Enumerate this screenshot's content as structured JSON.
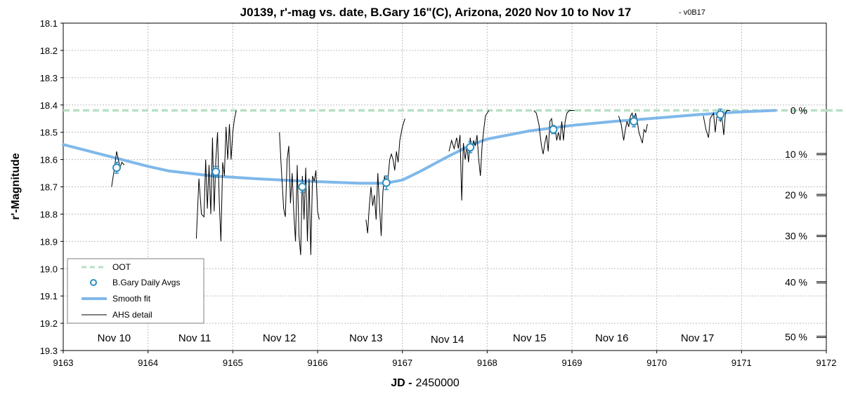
{
  "chart_data": {
    "type": "line",
    "title": "J0139, r'-mag vs. date, B.Gary 16\"(C), Arizona, 2020 Nov 10 to Nov 17",
    "version": "-  v0B17",
    "xlabel_bold": "JD -",
    "xlabel_rest": "2450000",
    "ylabel": "r'-Magnitude",
    "xlim": [
      9163,
      9172
    ],
    "ylim": [
      18.1,
      19.3
    ],
    "y_inverted": true,
    "grid": true,
    "legend_position": "bottom-left",
    "x_ticks": [
      "9163",
      "9164",
      "9165",
      "9166",
      "9167",
      "9168",
      "9169",
      "9170",
      "9171",
      "9172"
    ],
    "y_ticks": [
      "18.1",
      "18.2",
      "18.3",
      "18.4",
      "18.5",
      "18.6",
      "18.7",
      "18.8",
      "18.9",
      "19.0",
      "19.1",
      "19.2",
      "19.3"
    ],
    "day_labels": [
      {
        "x": 9163.6,
        "text": "Nov 10"
      },
      {
        "x": 9164.55,
        "text": "Nov 11"
      },
      {
        "x": 9165.55,
        "text": "Nov 12"
      },
      {
        "x": 9166.57,
        "text": "Nov 13"
      },
      {
        "x": 9167.53,
        "text": "Nov 14"
      },
      {
        "x": 9168.5,
        "text": "Nov 15"
      },
      {
        "x": 9169.47,
        "text": "Nov 16"
      },
      {
        "x": 9170.48,
        "text": "Nov 17"
      }
    ],
    "depth_scale": [
      {
        "label": "0 %",
        "mag": 18.42
      },
      {
        "label": "10 %",
        "mag": 18.58
      },
      {
        "label": "20 %",
        "mag": 18.73
      },
      {
        "label": "30 %",
        "mag": 18.88
      },
      {
        "label": "40 %",
        "mag": 19.05
      },
      {
        "label": "50 %",
        "mag": 19.25
      }
    ],
    "series": [
      {
        "name": "OOT",
        "kind": "dashed-line",
        "color": "#b7dfc4",
        "x": [
          9163,
          9172
        ],
        "y": [
          18.42,
          18.42
        ]
      },
      {
        "name": "B.Gary Daily Avgs",
        "kind": "markers-errorbars",
        "color": "#2f8fc0",
        "x": [
          9163.63,
          9164.8,
          9165.82,
          9166.81,
          9167.8,
          9168.78,
          9169.73,
          9170.75
        ],
        "y": [
          18.63,
          18.645,
          18.7,
          18.685,
          18.555,
          18.49,
          18.46,
          18.435
        ],
        "err": [
          0.02,
          0.02,
          0.02,
          0.025,
          0.02,
          0.015,
          0.02,
          0.02
        ]
      },
      {
        "name": "Smooth fit",
        "kind": "line",
        "color": "#7fb8ea",
        "x": [
          9163.0,
          9163.5,
          9164.0,
          9164.25,
          9164.75,
          9165.25,
          9165.75,
          9166.25,
          9166.5,
          9166.8,
          9167.0,
          9167.2,
          9167.5,
          9167.8,
          9168.0,
          9168.5,
          9169.0,
          9169.5,
          9170.0,
          9170.5,
          9171.0,
          9171.4
        ],
        "y": [
          18.545,
          18.585,
          18.625,
          18.642,
          18.66,
          18.67,
          18.678,
          18.684,
          18.687,
          18.687,
          18.675,
          18.645,
          18.595,
          18.548,
          18.525,
          18.495,
          18.475,
          18.46,
          18.448,
          18.435,
          18.425,
          18.42
        ]
      },
      {
        "name": "AHS detail",
        "kind": "line",
        "color": "#000000",
        "segments": [
          {
            "x": [
              9163.57,
              9163.6,
              9163.63,
              9163.65,
              9163.67,
              9163.69,
              9163.72
            ],
            "y": [
              18.7,
              18.64,
              18.57,
              18.6,
              18.63,
              18.61,
              18.62
            ]
          },
          {
            "x": [
              9164.57,
              9164.6,
              9164.63,
              9164.66,
              9164.68,
              9164.7,
              9164.72,
              9164.74,
              9164.76,
              9164.78,
              9164.8,
              9164.82,
              9164.84,
              9164.86,
              9164.88,
              9164.9,
              9164.92,
              9164.94,
              9164.96,
              9164.98,
              9165.0,
              9165.02,
              9165.04
            ],
            "y": [
              18.89,
              18.67,
              18.8,
              18.81,
              18.6,
              18.78,
              18.62,
              18.8,
              18.52,
              18.79,
              18.6,
              18.5,
              18.75,
              18.9,
              18.61,
              18.66,
              18.48,
              18.6,
              18.47,
              18.6,
              18.5,
              18.45,
              18.42
            ]
          },
          {
            "x": [
              9165.55,
              9165.57,
              9165.6,
              9165.62,
              9165.64,
              9165.66,
              9165.68,
              9165.7,
              9165.72,
              9165.74,
              9165.76,
              9165.78,
              9165.8,
              9165.82,
              9165.84,
              9165.86,
              9165.88,
              9165.9,
              9165.92,
              9165.94,
              9165.96,
              9165.98,
              9166.0,
              9166.02
            ],
            "y": [
              18.5,
              18.62,
              18.78,
              18.81,
              18.6,
              18.55,
              18.76,
              18.65,
              18.8,
              18.9,
              18.62,
              18.88,
              18.95,
              18.66,
              18.82,
              18.63,
              18.9,
              18.67,
              18.95,
              18.66,
              18.68,
              18.64,
              18.79,
              18.82
            ]
          },
          {
            "x": [
              9166.57,
              9166.59,
              9166.61,
              9166.63,
              9166.65,
              9166.67,
              9166.69,
              9166.71,
              9166.73,
              9166.75,
              9166.77,
              9166.79,
              9166.81,
              9166.83,
              9166.85,
              9166.87,
              9166.89,
              9166.91,
              9166.93,
              9166.95,
              9166.97,
              9167.0,
              9167.03
            ],
            "y": [
              18.82,
              18.87,
              18.77,
              18.7,
              18.77,
              18.73,
              18.82,
              18.65,
              18.77,
              18.88,
              18.72,
              18.66,
              18.7,
              18.67,
              18.6,
              18.58,
              18.6,
              18.64,
              18.57,
              18.61,
              18.53,
              18.48,
              18.45
            ]
          },
          {
            "x": [
              9167.55,
              9167.58,
              9167.61,
              9167.64,
              9167.66,
              9167.68,
              9167.7,
              9167.72,
              9167.74,
              9167.76,
              9167.78,
              9167.8,
              9167.82,
              9167.84,
              9167.86,
              9167.88,
              9167.9,
              9167.92,
              9167.94,
              9167.96,
              9167.98,
              9168.0,
              9168.02
            ],
            "y": [
              18.57,
              18.53,
              18.56,
              18.52,
              18.56,
              18.51,
              18.75,
              18.54,
              18.6,
              18.55,
              18.61,
              18.52,
              18.57,
              18.53,
              18.55,
              18.51,
              18.6,
              18.66,
              18.55,
              18.49,
              18.44,
              18.43,
              18.42
            ]
          },
          {
            "x": [
              9168.55,
              9168.58,
              9168.61,
              9168.64,
              9168.66,
              9168.68,
              9168.7,
              9168.72,
              9168.74,
              9168.76,
              9168.78,
              9168.8,
              9168.82,
              9168.84,
              9168.86,
              9168.88,
              9168.9,
              9168.92,
              9168.94,
              9168.97,
              9169.0,
              9169.03
            ],
            "y": [
              18.42,
              18.43,
              18.47,
              18.55,
              18.58,
              18.54,
              18.51,
              18.57,
              18.46,
              18.45,
              18.5,
              18.48,
              18.53,
              18.5,
              18.53,
              18.46,
              18.53,
              18.46,
              18.43,
              18.42,
              18.42,
              18.42
            ]
          },
          {
            "x": [
              9169.55,
              9169.58,
              9169.61,
              9169.63,
              9169.65,
              9169.67,
              9169.69,
              9169.71,
              9169.73,
              9169.75,
              9169.77,
              9169.79,
              9169.81,
              9169.83,
              9169.85,
              9169.87,
              9169.89
            ],
            "y": [
              18.44,
              18.47,
              18.53,
              18.49,
              18.46,
              18.48,
              18.44,
              18.43,
              18.46,
              18.43,
              18.46,
              18.5,
              18.52,
              18.54,
              18.49,
              18.5,
              18.47
            ]
          },
          {
            "x": [
              9170.55,
              9170.58,
              9170.61,
              9170.63,
              9170.65,
              9170.67,
              9170.69,
              9170.71,
              9170.73,
              9170.75,
              9170.77,
              9170.79,
              9170.81,
              9170.83,
              9170.85,
              9170.87
            ],
            "y": [
              18.44,
              18.49,
              18.52,
              18.45,
              18.44,
              18.43,
              18.5,
              18.44,
              18.42,
              18.46,
              18.45,
              18.51,
              18.43,
              18.42,
              18.42,
              18.42
            ]
          }
        ]
      }
    ]
  }
}
